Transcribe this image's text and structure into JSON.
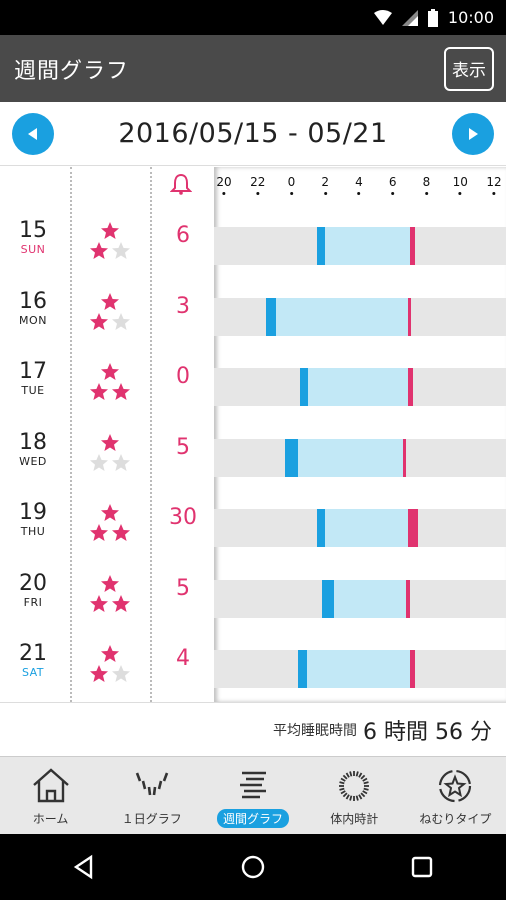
{
  "status_bar": {
    "time": "10:00"
  },
  "app_bar": {
    "title": "週間グラフ",
    "display_button": "表示"
  },
  "date_nav": {
    "range": "2016/05/15 - 05/21"
  },
  "colors": {
    "accent": "#1aa0e0",
    "pink": "#e0336f",
    "sleep": "#c2e8f6",
    "track": "#e6e6e6"
  },
  "chart_data": {
    "type": "table",
    "axis_ticks": [
      "20",
      "22",
      "0",
      "2",
      "4",
      "6",
      "8",
      "10",
      "12"
    ],
    "axis_range_hours": [
      20,
      36
    ],
    "rows": [
      {
        "day": "15",
        "weekday": "SUN",
        "stars": 2,
        "alarm_count": "6",
        "bed": 1.5,
        "sleep_start": 2.0,
        "wake": 7.0,
        "wake_end": 7.3
      },
      {
        "day": "16",
        "weekday": "MON",
        "stars": 2,
        "alarm_count": "3",
        "bed": -1.5,
        "sleep_start": -0.9,
        "wake": 6.9,
        "wake_end": 7.1
      },
      {
        "day": "17",
        "weekday": "TUE",
        "stars": 3,
        "alarm_count": "0",
        "bed": 0.5,
        "sleep_start": 1.0,
        "wake": 6.9,
        "wake_end": 7.2
      },
      {
        "day": "18",
        "weekday": "WED",
        "stars": 1,
        "alarm_count": "5",
        "bed": -0.4,
        "sleep_start": 0.4,
        "wake": 6.6,
        "wake_end": 6.8
      },
      {
        "day": "19",
        "weekday": "THU",
        "stars": 3,
        "alarm_count": "30",
        "bed": 1.5,
        "sleep_start": 2.0,
        "wake": 6.9,
        "wake_end": 7.5
      },
      {
        "day": "20",
        "weekday": "FRI",
        "stars": 3,
        "alarm_count": "5",
        "bed": 1.8,
        "sleep_start": 2.5,
        "wake": 6.8,
        "wake_end": 7.0
      },
      {
        "day": "21",
        "weekday": "SAT",
        "stars": 2,
        "alarm_count": "4",
        "bed": 0.4,
        "sleep_start": 0.9,
        "wake": 7.0,
        "wake_end": 7.3
      }
    ]
  },
  "average": {
    "label": "平均睡眠時間",
    "value": "6 時間 56 分"
  },
  "tabs": [
    {
      "label": "ホーム",
      "icon": "home-icon"
    },
    {
      "label": "１日グラフ",
      "icon": "day-graph-icon"
    },
    {
      "label": "週間グラフ",
      "icon": "week-graph-icon",
      "active": true
    },
    {
      "label": "体内時計",
      "icon": "body-clock-icon"
    },
    {
      "label": "ねむりタイプ",
      "icon": "sleep-type-icon"
    }
  ]
}
